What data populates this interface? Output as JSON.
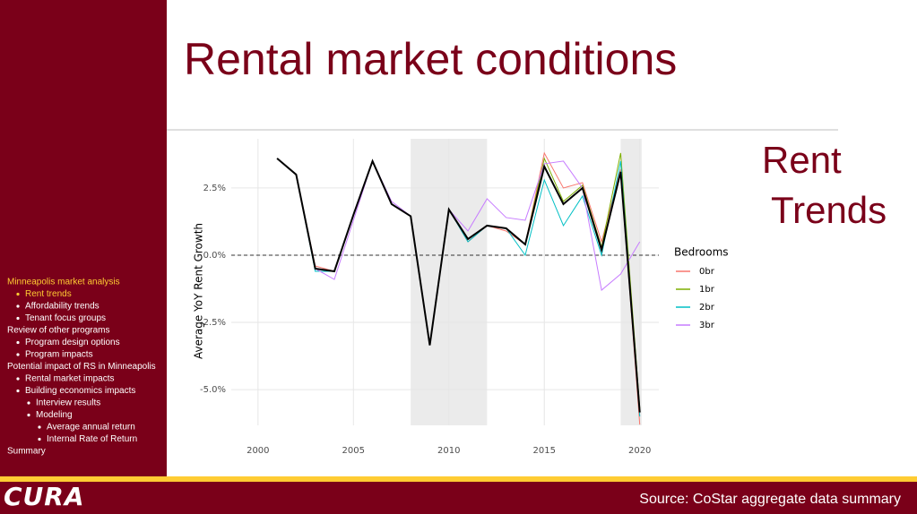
{
  "slide": {
    "title": "Rental market conditions",
    "subtitle": "Rent Trends",
    "nav": [
      {
        "text": "Minneapolis market analysis",
        "level": 0,
        "active": true
      },
      {
        "text": "Rent trends",
        "level": 1,
        "active": true
      },
      {
        "text": "Affordability trends",
        "level": 1
      },
      {
        "text": "Tenant focus groups",
        "level": 1
      },
      {
        "text": "Review of other programs",
        "level": 0
      },
      {
        "text": "Program design options",
        "level": 1
      },
      {
        "text": "Program impacts",
        "level": 1
      },
      {
        "text": "Potential impact of RS in Minneapolis",
        "level": 0
      },
      {
        "text": "Rental market impacts",
        "level": 1
      },
      {
        "text": "Building economics impacts",
        "level": 1
      },
      {
        "text": "Interview results",
        "level": 2
      },
      {
        "text": "Modeling",
        "level": 2
      },
      {
        "text": "Average annual return",
        "level": 3
      },
      {
        "text": "Internal Rate of Return",
        "level": 3
      },
      {
        "text": "Summary",
        "level": 0
      }
    ],
    "logo": "CURA",
    "source": "Source: CoStar aggregate data summary"
  },
  "chart_data": {
    "type": "line",
    "y_label": "Average YoY Rent Growth",
    "legend_title": "Bedrooms",
    "x": [
      2001,
      2002,
      2003,
      2004,
      2005,
      2006,
      2007,
      2008,
      2009,
      2010,
      2011,
      2012,
      2013,
      2014,
      2015,
      2016,
      2017,
      2018,
      2019,
      2020
    ],
    "series": [
      {
        "name": "0br",
        "color": "#f8766d",
        "values": [
          3.6,
          3.0,
          -0.4,
          -0.6,
          1.5,
          3.5,
          1.9,
          1.45,
          -3.35,
          1.7,
          0.5,
          1.1,
          0.9,
          0.4,
          3.8,
          2.5,
          2.7,
          0.5,
          3.2,
          -6.3
        ]
      },
      {
        "name": "1br",
        "color": "#7cae00",
        "values": [
          3.6,
          3.0,
          -0.5,
          -0.6,
          1.5,
          3.5,
          1.9,
          1.45,
          -3.35,
          1.7,
          0.6,
          1.1,
          1.0,
          0.4,
          3.6,
          2.0,
          2.6,
          0.3,
          3.8,
          -5.7
        ]
      },
      {
        "name": "2br",
        "color": "#00bfc4",
        "values": [
          3.6,
          3.0,
          -0.6,
          -0.6,
          1.5,
          3.5,
          1.9,
          1.45,
          -3.35,
          1.7,
          0.5,
          1.1,
          1.0,
          0.0,
          2.8,
          1.1,
          2.2,
          0.0,
          3.5,
          -6.0
        ]
      },
      {
        "name": "3br",
        "color": "#c77cff",
        "values": [
          3.6,
          3.0,
          -0.5,
          -0.9,
          1.3,
          3.5,
          2.0,
          1.45,
          -3.35,
          1.7,
          0.9,
          2.1,
          1.4,
          1.3,
          3.4,
          3.5,
          2.5,
          -1.3,
          -0.7,
          0.5
        ]
      },
      {
        "color": "#000000",
        "values": [
          3.6,
          3.0,
          -0.5,
          -0.6,
          1.5,
          3.5,
          1.9,
          1.45,
          -3.35,
          1.7,
          0.6,
          1.1,
          1.0,
          0.4,
          3.3,
          1.9,
          2.5,
          0.2,
          3.1,
          -5.85
        ]
      }
    ],
    "shaded_regions": [
      [
        2008,
        2012
      ],
      [
        2019,
        2020.1
      ]
    ],
    "reference_line": 0,
    "xlim": [
      1998.6,
      2021.0
    ],
    "ylim": [
      -6.33,
      4.33
    ],
    "xticks": [
      2000,
      2005,
      2010,
      2015,
      2020
    ],
    "yticks": [
      {
        "value": -5,
        "label": "-5.0%"
      },
      {
        "value": -2.5,
        "label": "-2.5%"
      },
      {
        "value": 0,
        "label": "0.0%"
      },
      {
        "value": 2.5,
        "label": "2.5%"
      }
    ],
    "grid": true
  }
}
